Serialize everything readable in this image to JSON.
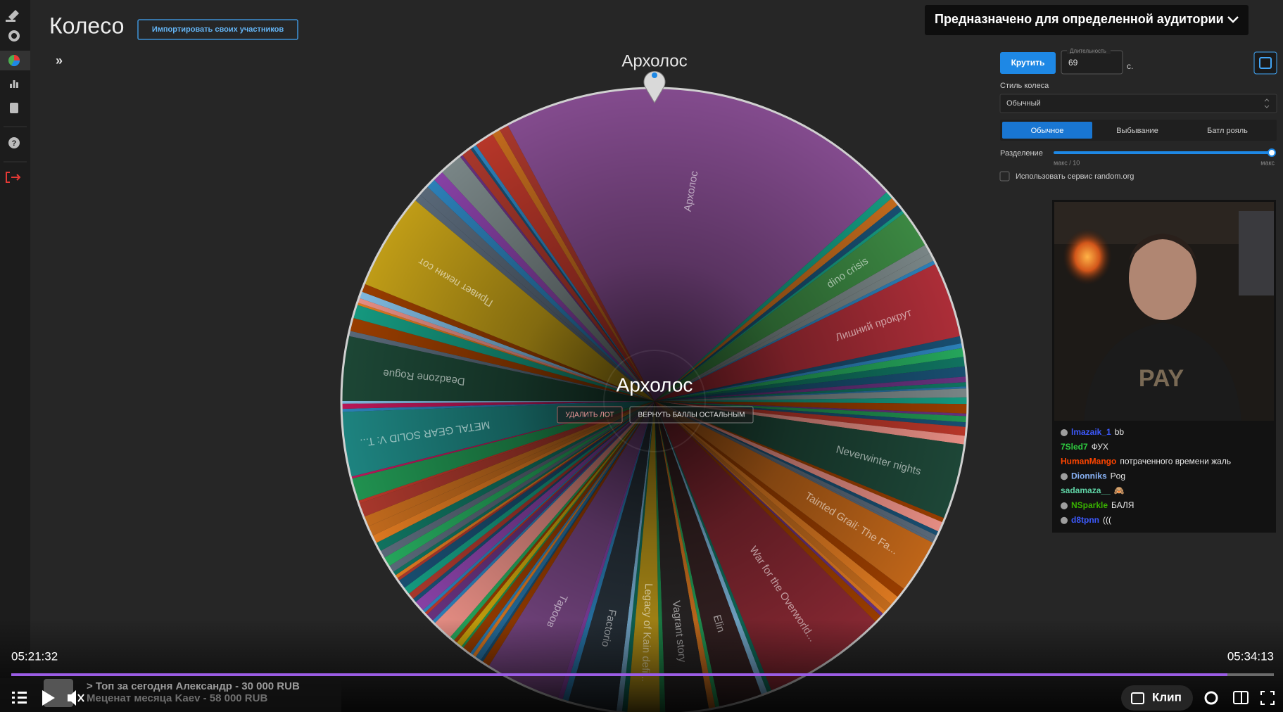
{
  "app": {
    "title": "Колесо",
    "import_button": "Импортировать своих участников",
    "expand": "»"
  },
  "banner": "Предназначено для определенной аудитории",
  "wheel": {
    "winner_top": "Архолос",
    "winner_center": "Архолос",
    "delete_button": "УДАЛИТЬ ЛОТ",
    "return_button": "ВЕРНУТЬ БАЛЛЫ ОСТАЛЬНЫМ",
    "slices": [
      "Архолос",
      "dino crisis",
      "Лишний прокрут",
      "Neverwinter nights",
      "Tainted Grail: The Fa...",
      "War for the Overworld...",
      "Elin",
      "Vagrant story",
      "Legacy of Kain defi...",
      "Factorio",
      "Тароов",
      "METAL GEAR SOLID V: T...",
      "Deadzone Rogue",
      "Привет пекин сот"
    ]
  },
  "controls": {
    "spin": "Крутить",
    "duration_label": "Длительность",
    "duration_value": 69,
    "duration_unit": "с.",
    "style_label": "Стиль колеса",
    "style_value": "Обычный",
    "modes": [
      "Обычное",
      "Выбывание",
      "Батл рояль"
    ],
    "split_label": "Разделение",
    "split_min": "макс / 10",
    "split_max": "макс",
    "random_org": "Использовать сервис random.org"
  },
  "chat": [
    {
      "user": "lmazaik_1",
      "text": "bb"
    },
    {
      "user": "7Sled7",
      "text": "ФУХ"
    },
    {
      "user": "HumanMango",
      "text": "потраченного времени жаль"
    },
    {
      "user": "Dionniks",
      "text": "Pog"
    },
    {
      "user": "sadamaza__",
      "text": "🙈"
    },
    {
      "user": "NSparkle",
      "text": "БАЛЯ"
    },
    {
      "user": "d8tpnn",
      "text": "((("
    }
  ],
  "player": {
    "elapsed": "05:21:32",
    "total": "05:34:13",
    "ticker_1": "> Топ за сегодня Александр - 30 000 RUB",
    "ticker_2": "Меценат месяца Kaev - 58 000 RUB",
    "clip": "Клип"
  }
}
